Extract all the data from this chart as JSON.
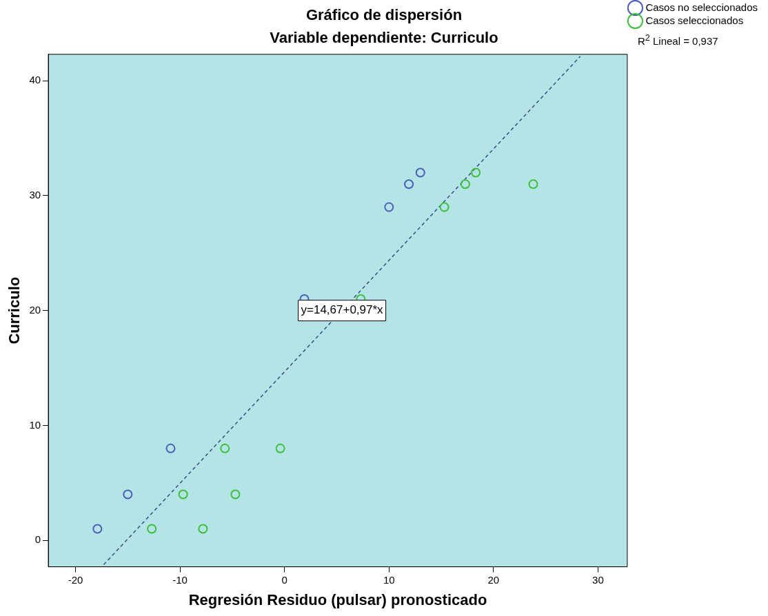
{
  "chart_data": {
    "type": "scatter",
    "title": "Gráfico de dispersión",
    "subtitle": "Variable dependiente: Curriculo",
    "xlabel": "Regresión Residuo (pulsar) pronosticado",
    "ylabel": "Curriculo",
    "xlim": [
      -22.6,
      32.8
    ],
    "ylim": [
      -2.3,
      42.3
    ],
    "xticks": [
      -20,
      -10,
      0,
      10,
      20,
      30
    ],
    "yticks": [
      0,
      10,
      20,
      30,
      40
    ],
    "grid": false,
    "legend": "top right",
    "marker": "circle",
    "series": [
      {
        "name": "Casos no seleccionados",
        "color": "#4a5fb8",
        "x": [
          -17.9,
          -15,
          -10.9,
          1.9,
          10,
          11.9,
          13
        ],
        "values": [
          1,
          4,
          8,
          21,
          29,
          31,
          32
        ]
      },
      {
        "name": "Casos seleccionados",
        "color": "#3cbf3c",
        "x": [
          -12.7,
          -7.8,
          -9.7,
          -4.7,
          -5.7,
          -0.4,
          7.3,
          15.3,
          17.3,
          18.3,
          23.8
        ],
        "values": [
          1,
          1,
          4,
          4,
          8,
          8,
          21,
          29,
          31,
          32,
          31
        ]
      },
      {
        "type": "line",
        "color": "#3a4a8a",
        "line_style": "dashed",
        "marker": "none",
        "x": [
          -17.3,
          28.3
        ],
        "values": [
          -2.11,
          42.12
        ]
      }
    ],
    "annotations": [
      {
        "text": "y=14,67+0,97*x",
        "x": 5.5,
        "y": 20
      },
      "R$^{2}$ Lineal = 0,937"
    ]
  }
}
